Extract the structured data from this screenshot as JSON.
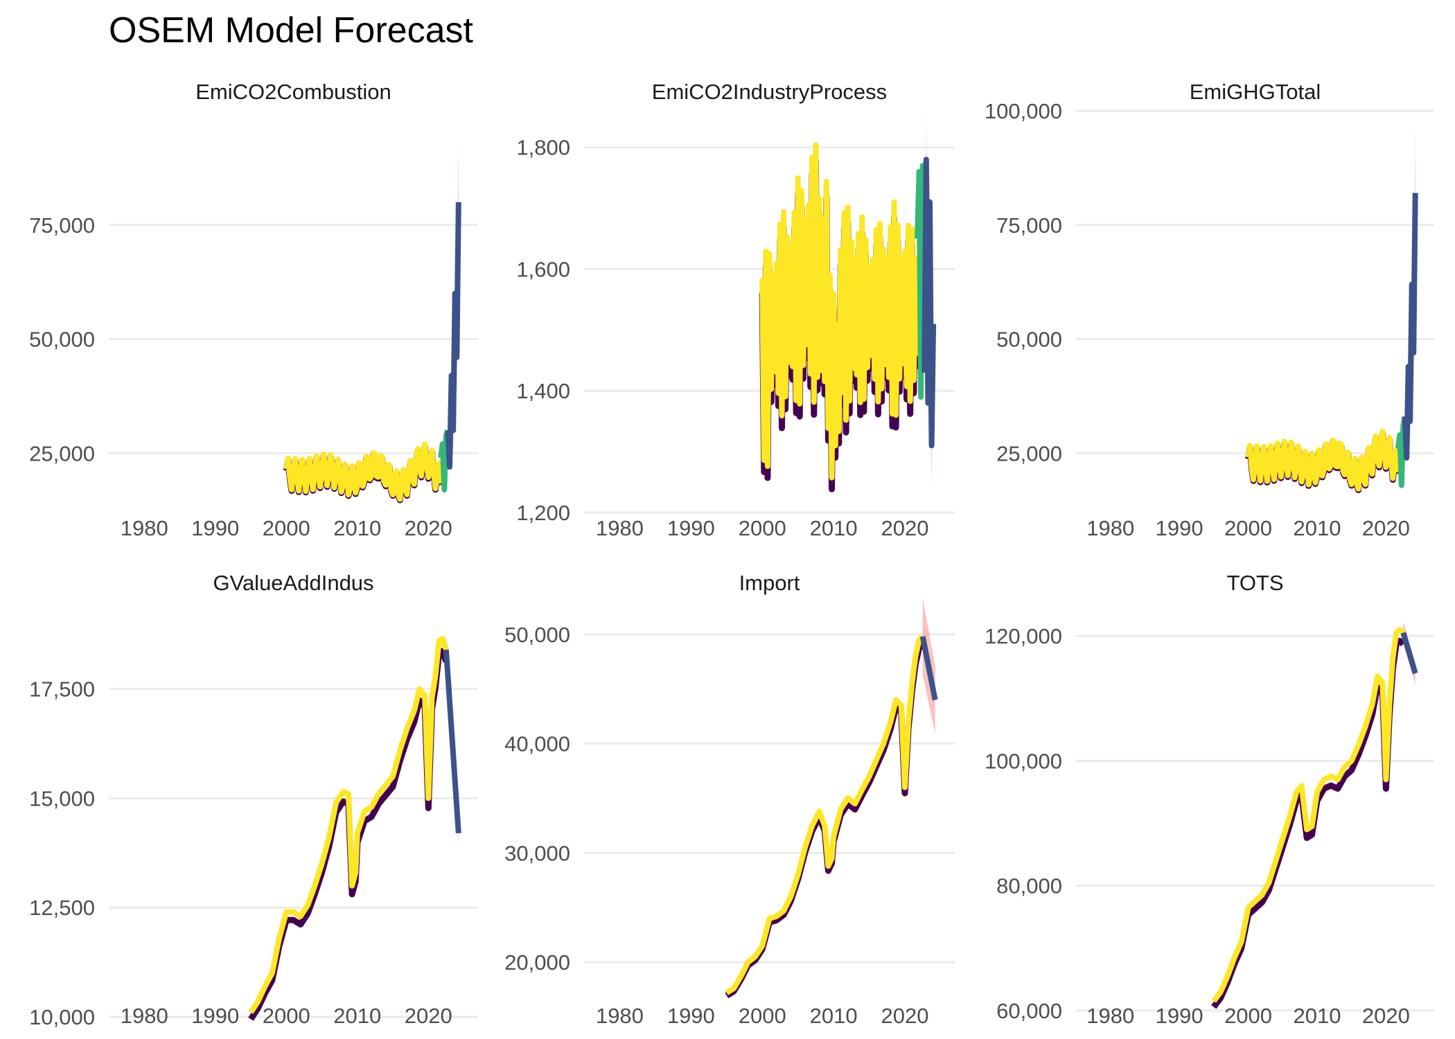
{
  "title": "OSEM Model Forecast",
  "colors": {
    "historical_dark": "#440154",
    "fitted": "#FDE725",
    "test_fit": "#35B779",
    "forecast": "#3B528B",
    "forecast_band": "#F8766D",
    "grid": "#EBEBEB",
    "tick_text": "#4D4D4D"
  },
  "chart_data": [
    {
      "type": "line",
      "title": "EmiCO2Combustion",
      "xlim": [
        1975,
        2027
      ],
      "ylim": [
        12000,
        100000
      ],
      "x_ticks": [
        1980,
        1990,
        2000,
        2010,
        2020
      ],
      "y_ticks": [
        25000,
        50000,
        75000
      ],
      "y_tick_labels": [
        "25,000",
        "50,000",
        "75,000"
      ],
      "pattern": "seasonal",
      "history": {
        "start": 2000,
        "end": 2021.75,
        "base": 20500,
        "amplitude": 3500,
        "trend": 40
      },
      "test_fit": [
        [
          2021.75,
          24000
        ],
        [
          2022,
          27000
        ],
        [
          2022.25,
          17000
        ],
        [
          2022.5,
          29000
        ],
        [
          2022.75,
          30000
        ]
      ],
      "forecast": [
        [
          2022.75,
          30000
        ],
        [
          2023,
          22000
        ],
        [
          2023.25,
          42000
        ],
        [
          2023.5,
          30000
        ],
        [
          2023.75,
          60000
        ],
        [
          2024,
          46000
        ],
        [
          2024.25,
          80000
        ]
      ],
      "forecast_band": {
        "start": 2023,
        "end": 2024.25,
        "rel_width": 0.18
      }
    },
    {
      "type": "line",
      "title": "EmiCO2IndustryProcess",
      "xlim": [
        1975,
        2027
      ],
      "ylim": [
        1200,
        1860
      ],
      "x_ticks": [
        1980,
        1990,
        2000,
        2010,
        2020
      ],
      "y_ticks": [
        1200,
        1400,
        1600,
        1800
      ],
      "y_tick_labels": [
        "1,200",
        "1,400",
        "1,600",
        "1,800"
      ],
      "pattern": "industry",
      "history": {
        "start": 2000,
        "end": 2021.75
      },
      "test_fit": [
        [
          2021.75,
          1650
        ],
        [
          2022,
          1760
        ],
        [
          2022.25,
          1390
        ],
        [
          2022.5,
          1770
        ],
        [
          2022.75,
          1430
        ]
      ],
      "forecast": [
        [
          2022.75,
          1430
        ],
        [
          2023,
          1780
        ],
        [
          2023.25,
          1380
        ],
        [
          2023.5,
          1710
        ],
        [
          2023.75,
          1310
        ],
        [
          2024,
          1510
        ]
      ],
      "forecast_band": {
        "start": 2023,
        "end": 2024,
        "rel_width": 0.05
      }
    },
    {
      "type": "line",
      "title": "EmiGHGTotal",
      "xlim": [
        1975,
        2027
      ],
      "ylim": [
        12000,
        100000
      ],
      "x_ticks": [
        1980,
        1990,
        2000,
        2010,
        2020
      ],
      "y_ticks": [
        25000,
        50000,
        75000,
        100000
      ],
      "y_tick_labels": [
        "25,000",
        "50,000",
        "75,000",
        "100,000"
      ],
      "pattern": "seasonal",
      "history": {
        "start": 2000,
        "end": 2021.75,
        "base": 23000,
        "amplitude": 3800,
        "trend": 40
      },
      "test_fit": [
        [
          2021.75,
          26000
        ],
        [
          2022,
          29000
        ],
        [
          2022.25,
          18000
        ],
        [
          2022.5,
          31000
        ],
        [
          2022.75,
          33000
        ]
      ],
      "forecast": [
        [
          2022.75,
          33000
        ],
        [
          2023,
          24000
        ],
        [
          2023.25,
          44000
        ],
        [
          2023.5,
          32000
        ],
        [
          2023.75,
          62000
        ],
        [
          2024,
          47000
        ],
        [
          2024.25,
          82000
        ]
      ],
      "forecast_band": {
        "start": 2023,
        "end": 2024.25,
        "rel_width": 0.18
      }
    },
    {
      "type": "line",
      "title": "GValueAddIndus",
      "xlim": [
        1975,
        2027
      ],
      "ylim": [
        10000,
        19000
      ],
      "x_ticks": [
        1980,
        1990,
        2000,
        2010,
        2020
      ],
      "y_ticks": [
        10000,
        12500,
        15000,
        17500
      ],
      "y_tick_labels": [
        "10,000",
        "12,500",
        "15,000",
        "17,500"
      ],
      "pattern": "trend",
      "history": [
        [
          1995,
          10100
        ],
        [
          1996,
          10350
        ],
        [
          1997,
          10700
        ],
        [
          1998,
          11000
        ],
        [
          1999,
          11800
        ],
        [
          2000,
          12400
        ],
        [
          2001,
          12400
        ],
        [
          2002,
          12300
        ],
        [
          2003,
          12550
        ],
        [
          2004,
          13000
        ],
        [
          2005,
          13500
        ],
        [
          2006,
          14100
        ],
        [
          2007,
          14900
        ],
        [
          2008,
          15150
        ],
        [
          2008.75,
          15100
        ],
        [
          2009.25,
          13000
        ],
        [
          2009.75,
          13300
        ],
        [
          2010,
          14200
        ],
        [
          2011,
          14700
        ],
        [
          2012,
          14800
        ],
        [
          2013,
          15100
        ],
        [
          2014,
          15300
        ],
        [
          2015,
          15500
        ],
        [
          2016,
          16100
        ],
        [
          2017,
          16600
        ],
        [
          2018,
          17000
        ],
        [
          2018.75,
          17500
        ],
        [
          2019.5,
          17350
        ],
        [
          2020,
          15000
        ],
        [
          2020.5,
          17300
        ],
        [
          2021,
          17800
        ],
        [
          2021.5,
          18600
        ],
        [
          2022,
          18650
        ],
        [
          2022.5,
          18400
        ]
      ],
      "forecast": [
        [
          2022.5,
          18400
        ],
        [
          2024.25,
          14200
        ]
      ],
      "forecast_band": {
        "start": 2022.5,
        "end": 2024.25,
        "rel_width": 0.02
      }
    },
    {
      "type": "line",
      "title": "Import",
      "xlim": [
        1975,
        2027
      ],
      "ylim": [
        15000,
        51000
      ],
      "x_ticks": [
        1980,
        1990,
        2000,
        2010,
        2020
      ],
      "y_ticks": [
        20000,
        30000,
        40000,
        50000
      ],
      "y_tick_labels": [
        "20,000",
        "30,000",
        "40,000",
        "50,000"
      ],
      "pattern": "trend",
      "history": [
        [
          1995,
          17200
        ],
        [
          1996,
          17600
        ],
        [
          1997,
          18700
        ],
        [
          1998,
          20000
        ],
        [
          1999,
          20500
        ],
        [
          2000,
          21500
        ],
        [
          2001,
          24000
        ],
        [
          2002,
          24200
        ],
        [
          2003,
          24700
        ],
        [
          2004,
          26000
        ],
        [
          2005,
          28000
        ],
        [
          2006,
          30500
        ],
        [
          2007,
          32500
        ],
        [
          2008,
          33800
        ],
        [
          2008.75,
          32500
        ],
        [
          2009.25,
          28800
        ],
        [
          2009.75,
          29500
        ],
        [
          2010,
          31500
        ],
        [
          2011,
          34000
        ],
        [
          2012,
          35000
        ],
        [
          2013,
          34500
        ],
        [
          2014,
          35800
        ],
        [
          2015,
          37000
        ],
        [
          2016,
          38500
        ],
        [
          2017,
          40000
        ],
        [
          2018,
          42000
        ],
        [
          2018.75,
          44000
        ],
        [
          2019.5,
          43500
        ],
        [
          2020,
          36000
        ],
        [
          2020.5,
          42000
        ],
        [
          2021,
          45500
        ],
        [
          2021.5,
          48000
        ],
        [
          2022,
          49500
        ],
        [
          2022.5,
          49800
        ]
      ],
      "forecast": [
        [
          2022.5,
          49800
        ],
        [
          2024.25,
          44000
        ]
      ],
      "forecast_band": {
        "start": 2022.5,
        "end": 2024.25,
        "rel_width": 0.07
      }
    },
    {
      "type": "line",
      "title": "TOTS",
      "xlim": [
        1975,
        2027
      ],
      "ylim": [
        59000,
        122000
      ],
      "x_ticks": [
        1980,
        1990,
        2000,
        2010,
        2020
      ],
      "y_ticks": [
        60000,
        80000,
        100000,
        120000
      ],
      "y_tick_labels": [
        "60,000",
        "80,000",
        "100,000",
        "120,000"
      ],
      "pattern": "trend",
      "history": [
        [
          1995,
          61500
        ],
        [
          1996,
          63000
        ],
        [
          1997,
          65500
        ],
        [
          1998,
          68500
        ],
        [
          1999,
          71000
        ],
        [
          2000,
          76500
        ],
        [
          2001,
          77500
        ],
        [
          2002,
          78500
        ],
        [
          2003,
          80500
        ],
        [
          2004,
          84000
        ],
        [
          2005,
          87500
        ],
        [
          2006,
          91000
        ],
        [
          2007,
          95000
        ],
        [
          2007.75,
          96000
        ],
        [
          2008.5,
          89000
        ],
        [
          2009.25,
          89500
        ],
        [
          2010,
          95000
        ],
        [
          2011,
          97000
        ],
        [
          2012,
          97500
        ],
        [
          2013,
          97000
        ],
        [
          2014,
          99000
        ],
        [
          2015,
          100000
        ],
        [
          2016,
          102500
        ],
        [
          2017,
          105500
        ],
        [
          2018,
          109000
        ],
        [
          2018.75,
          113500
        ],
        [
          2019.5,
          112500
        ],
        [
          2020,
          97000
        ],
        [
          2020.5,
          109000
        ],
        [
          2021,
          116500
        ],
        [
          2021.5,
          120500
        ],
        [
          2022,
          121000
        ],
        [
          2022.5,
          120500
        ]
      ],
      "forecast": [
        [
          2022.5,
          120500
        ],
        [
          2024.25,
          114000
        ]
      ],
      "forecast_band": {
        "start": 2022.5,
        "end": 2024.25,
        "rel_width": 0.015
      }
    }
  ]
}
